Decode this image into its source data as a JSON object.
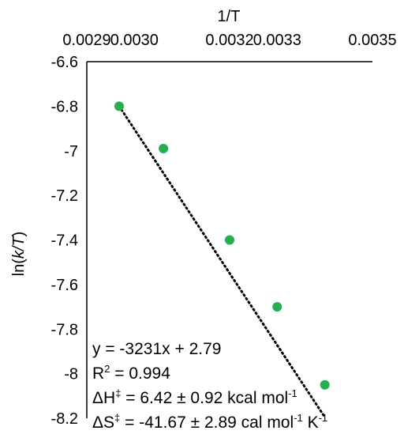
{
  "chart_data": {
    "type": "scatter",
    "x_axis": {
      "label": "1/T",
      "position": "top",
      "range": [
        0.0029,
        0.0035
      ],
      "ticks": [
        "0.0029",
        "0.0030",
        "0.0032",
        "0.0033",
        "0.0035"
      ],
      "tick_values": [
        0.0029,
        0.003,
        0.0032,
        0.0033,
        0.0035
      ]
    },
    "y_axis": {
      "label_prefix": "ln(",
      "label_italic": "k/T",
      "label_suffix": ")",
      "range": [
        -8.2,
        -6.6
      ],
      "ticks": [
        "-6.6",
        "-6.8",
        "-7",
        "-7.2",
        "-7.4",
        "-7.6",
        "-7.8",
        "-8",
        "-8.2"
      ],
      "tick_values": [
        -6.6,
        -6.8,
        -7.0,
        -7.2,
        -7.4,
        -7.6,
        -7.8,
        -8.0,
        -8.2
      ]
    },
    "series": [
      {
        "points": [
          {
            "x": 0.002968,
            "y": -6.8
          },
          {
            "x": 0.003061,
            "y": -6.99
          },
          {
            "x": 0.0032,
            "y": -7.4
          },
          {
            "x": 0.0033,
            "y": -7.7
          },
          {
            "x": 0.0034,
            "y": -8.05
          }
        ],
        "color": "#21b24b"
      }
    ],
    "trendline": {
      "type": "linear",
      "slope": -3231,
      "intercept": 2.79,
      "x_range": [
        0.002968,
        0.0034
      ],
      "style": "dotted",
      "color": "#000000"
    },
    "grid": false,
    "legend": "none"
  },
  "annotations": {
    "equation": "y = -3231x + 2.79",
    "r2_prefix": "R",
    "r2_sup": "2",
    "r2_value": " = 0.994",
    "dh_prefix": "ΔH",
    "dh_sup": "‡",
    "dh_value": " = 6.42 ± 0.92 kcal mol",
    "dh_unit_sup": "-1",
    "ds_prefix": "ΔS",
    "ds_sup": "‡",
    "ds_value": " = -41.67 ± 2.89 cal mol",
    "ds_unit_sup1": "-1",
    "ds_mid": " K",
    "ds_unit_sup2": "-1"
  }
}
